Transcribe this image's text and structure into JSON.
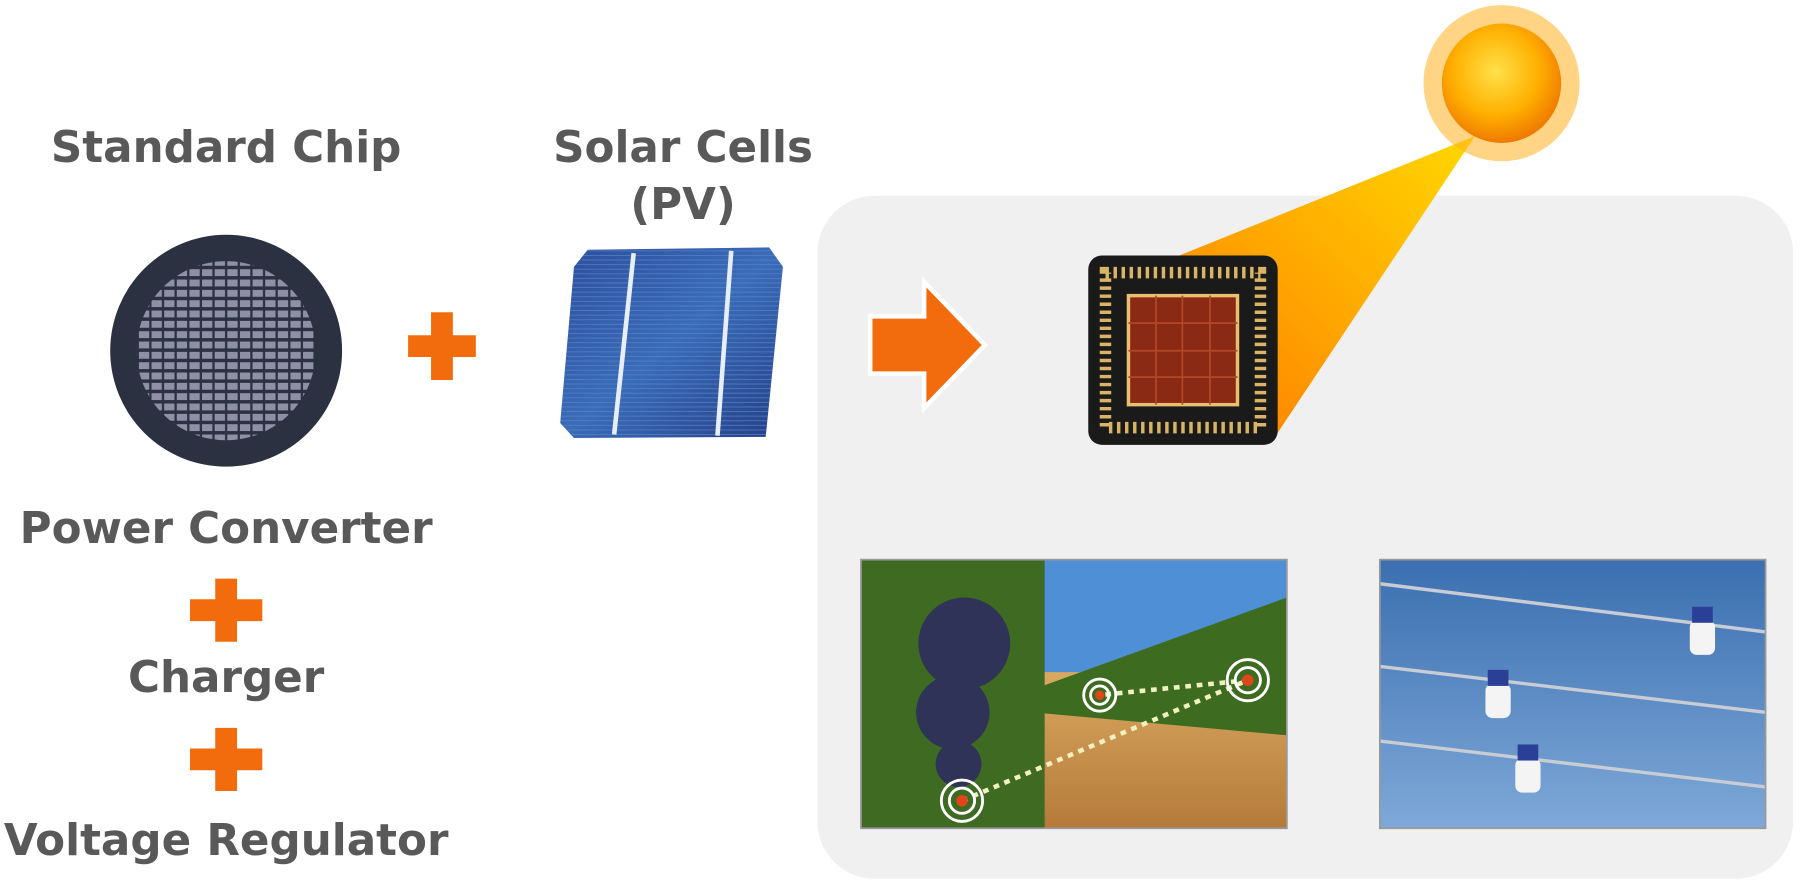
{
  "top": {
    "chip_label": "Standard Chip",
    "pv_label": [
      "Solar Cells",
      "(PV)"
    ]
  },
  "stack": [
    "Power Converter",
    "Charger",
    "Voltage Regulator"
  ]
}
